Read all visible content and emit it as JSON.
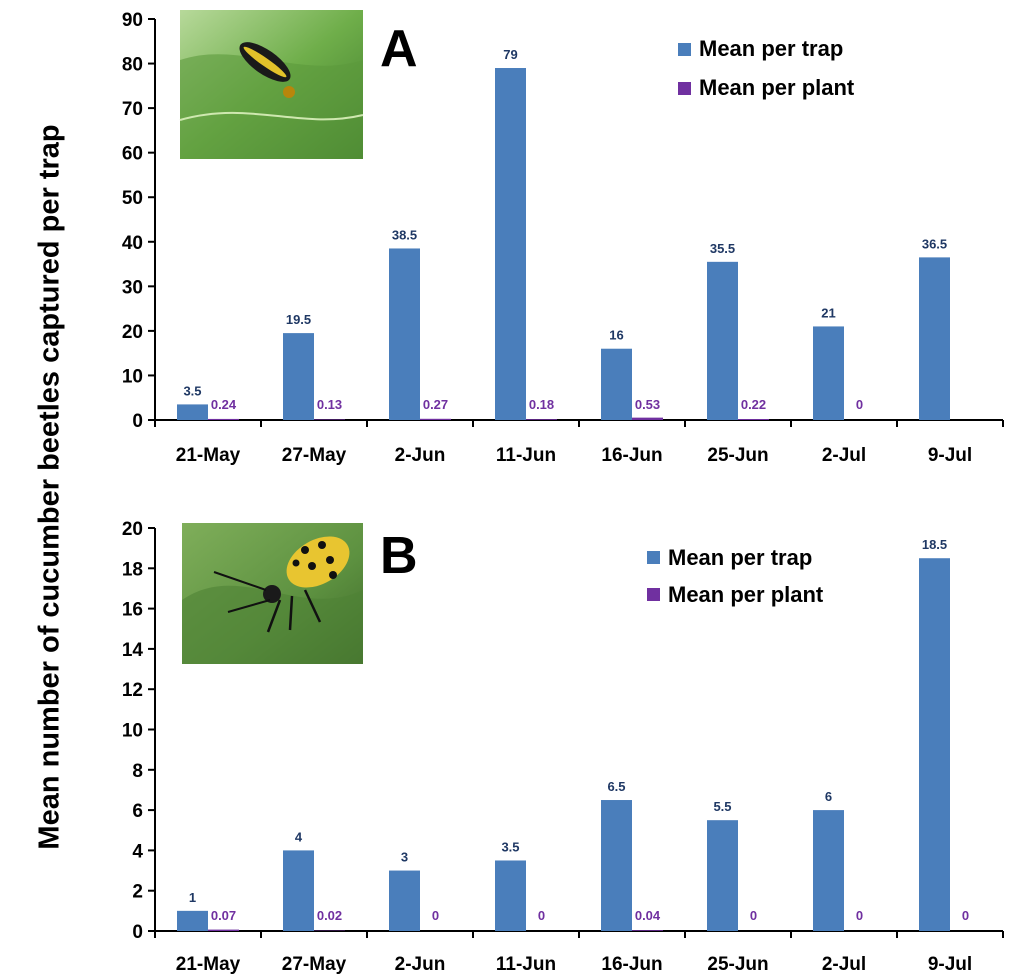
{
  "figure": {
    "ylabel": "Mean number of cucumber beetles captured per trap"
  },
  "colors": {
    "trap": "#4a7ebb",
    "plant": "#7030a0",
    "trap_label": "#1f3864",
    "plant_label": "#7030a0"
  },
  "chart_data": [
    {
      "type": "bar",
      "panel_letter": "A",
      "photo": "striped-cucumber-beetle-photo",
      "categories": [
        "21-May",
        "27-May",
        "2-Jun",
        "11-Jun",
        "16-Jun",
        "25-Jun",
        "2-Jul",
        "9-Jul"
      ],
      "series": [
        {
          "name": "Mean per trap",
          "values": [
            3.5,
            19.5,
            38.5,
            79,
            16,
            35.5,
            21,
            36.5
          ],
          "labels": [
            "3.5",
            "19.5",
            "38.5",
            "79",
            "16",
            "35.5",
            "21",
            "36.5"
          ]
        },
        {
          "name": "Mean per plant",
          "values": [
            0.24,
            0.13,
            0.27,
            0.18,
            0.53,
            0.22,
            0,
            null
          ],
          "labels": [
            "0.24",
            "0.13",
            "0.27",
            "0.18",
            "0.53",
            "0.22",
            "0",
            null
          ]
        }
      ],
      "ylim": [
        0,
        90
      ],
      "yticks": [
        0,
        10,
        20,
        30,
        40,
        50,
        60,
        70,
        80,
        90
      ],
      "grid": false,
      "legend": "top-right"
    },
    {
      "type": "bar",
      "panel_letter": "B",
      "photo": "spotted-cucumber-beetle-photo",
      "categories": [
        "21-May",
        "27-May",
        "2-Jun",
        "11-Jun",
        "16-Jun",
        "25-Jun",
        "2-Jul",
        "9-Jul"
      ],
      "series": [
        {
          "name": "Mean per trap",
          "values": [
            1,
            4,
            3,
            3.5,
            6.5,
            5.5,
            6,
            18.5
          ],
          "labels": [
            "1",
            "4",
            "3",
            "3.5",
            "6.5",
            "5.5",
            "6",
            "18.5"
          ]
        },
        {
          "name": "Mean per plant",
          "values": [
            0.07,
            0.02,
            0,
            0,
            0.04,
            0,
            0,
            0
          ],
          "labels": [
            "0.07",
            "0.02",
            "0",
            "0",
            "0.04",
            "0",
            "0",
            "0"
          ]
        }
      ],
      "ylim": [
        0,
        20
      ],
      "yticks": [
        0,
        2,
        4,
        6,
        8,
        10,
        12,
        14,
        16,
        18,
        20
      ],
      "grid": false,
      "legend": "top-right"
    }
  ]
}
